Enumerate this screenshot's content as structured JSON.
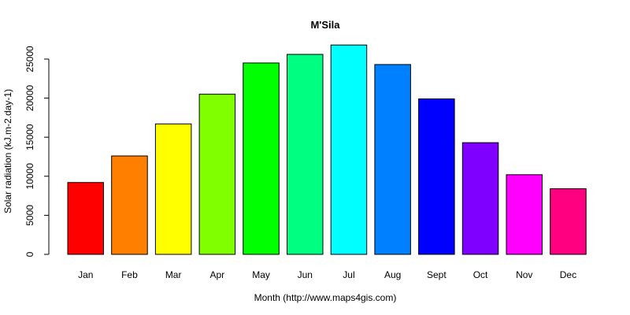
{
  "chart_data": {
    "type": "bar",
    "title": "M'Sila",
    "xlabel": "Month (http://www.maps4gis.com)",
    "ylabel": "Solar radiation (kJ.m-2.day-1)",
    "categories": [
      "Jan",
      "Feb",
      "Mar",
      "Apr",
      "May",
      "Jun",
      "Jul",
      "Aug",
      "Sept",
      "Oct",
      "Nov",
      "Dec"
    ],
    "values": [
      9200,
      12600,
      16700,
      20500,
      24500,
      25600,
      26800,
      24300,
      19900,
      14300,
      10200,
      8400
    ],
    "colors": [
      "#FF0000",
      "#FF8000",
      "#FFFF00",
      "#80FF00",
      "#00FF00",
      "#00FF80",
      "#00FFFF",
      "#0080FF",
      "#0000FF",
      "#8000FF",
      "#FF00FF",
      "#FF0080"
    ],
    "yticks": [
      0,
      5000,
      10000,
      15000,
      20000,
      25000
    ],
    "ylim": [
      0,
      27000
    ],
    "grid": false,
    "legend": "none"
  }
}
